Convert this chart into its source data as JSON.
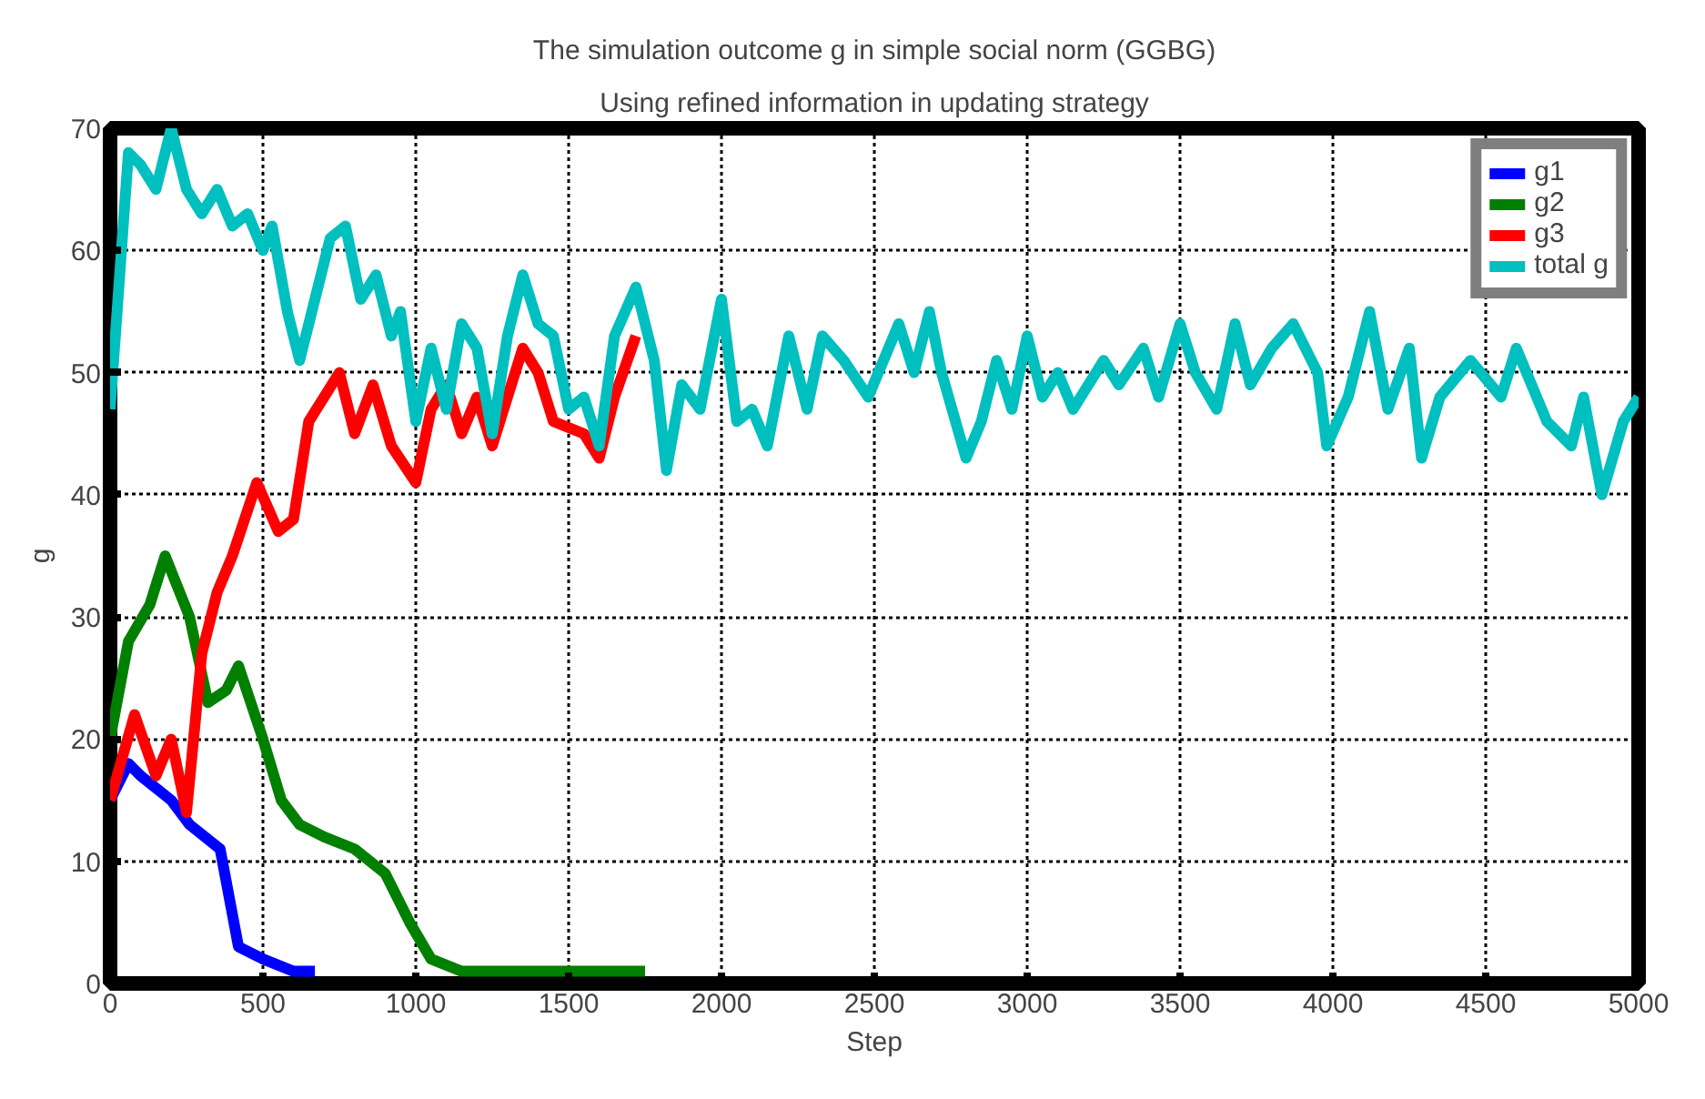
{
  "chart_data": {
    "type": "line",
    "title": "The simulation outcome g in simple social norm (GGBG)",
    "subtitle": "Using refined information in updating strategy",
    "xlabel": "Step",
    "ylabel": "g",
    "xlim": [
      0,
      5000
    ],
    "ylim": [
      0,
      70
    ],
    "xticks": [
      0,
      500,
      1000,
      1500,
      2000,
      2500,
      3000,
      3500,
      4000,
      4500,
      5000
    ],
    "yticks": [
      0,
      10,
      20,
      30,
      40,
      50,
      60,
      70
    ],
    "grid": true,
    "legend": "top right",
    "line_style": "solid",
    "marker": "none",
    "series": [
      {
        "name": "g1",
        "color": "#0000ff",
        "x": [
          0,
          60,
          100,
          200,
          260,
          360,
          420,
          500,
          600,
          670
        ],
        "values": [
          15,
          18,
          17,
          15,
          13,
          11,
          3,
          2,
          1,
          1
        ]
      },
      {
        "name": "g2",
        "color": "#008000",
        "x": [
          0,
          60,
          130,
          180,
          260,
          320,
          380,
          420,
          500,
          560,
          620,
          700,
          800,
          900,
          980,
          1050,
          1150,
          1750
        ],
        "values": [
          20,
          28,
          31,
          35,
          30,
          23,
          24,
          26,
          20,
          15,
          13,
          12,
          11,
          9,
          5,
          2,
          1,
          1
        ]
      },
      {
        "name": "g3",
        "color": "#ff0000",
        "x": [
          0,
          80,
          150,
          200,
          250,
          300,
          350,
          400,
          480,
          550,
          600,
          650,
          750,
          800,
          860,
          920,
          1000,
          1050,
          1100,
          1150,
          1200,
          1250,
          1350,
          1400,
          1450,
          1550,
          1600,
          1650,
          1720
        ],
        "values": [
          15,
          22,
          17,
          20,
          14,
          27,
          32,
          35,
          41,
          37,
          38,
          46,
          50,
          45,
          49,
          44,
          41,
          47,
          49,
          45,
          48,
          44,
          52,
          50,
          46,
          45,
          43,
          48,
          53
        ]
      },
      {
        "name": "total g",
        "color": "#00bfbf",
        "x": [
          0,
          60,
          100,
          150,
          200,
          250,
          300,
          350,
          400,
          450,
          500,
          530,
          580,
          620,
          660,
          720,
          770,
          820,
          870,
          920,
          950,
          1000,
          1050,
          1100,
          1150,
          1200,
          1250,
          1300,
          1350,
          1400,
          1450,
          1500,
          1550,
          1600,
          1650,
          1720,
          1780,
          1820,
          1870,
          1930,
          2000,
          2050,
          2100,
          2150,
          2220,
          2280,
          2330,
          2400,
          2480,
          2580,
          2630,
          2680,
          2720,
          2800,
          2850,
          2900,
          2950,
          3000,
          3050,
          3100,
          3150,
          3250,
          3300,
          3380,
          3430,
          3500,
          3550,
          3620,
          3680,
          3730,
          3800,
          3870,
          3950,
          3980,
          4050,
          4120,
          4180,
          4250,
          4290,
          4350,
          4450,
          4550,
          4600,
          4700,
          4780,
          4820,
          4880,
          4950,
          5000
        ],
        "values": [
          47,
          68,
          67,
          65,
          70,
          65,
          63,
          65,
          62,
          63,
          60,
          62,
          55,
          51,
          55,
          61,
          62,
          56,
          58,
          53,
          55,
          46,
          52,
          47,
          54,
          52,
          45,
          53,
          58,
          54,
          53,
          47,
          48,
          44,
          53,
          57,
          51,
          42,
          49,
          47,
          56,
          46,
          47,
          44,
          53,
          47,
          53,
          51,
          48,
          54,
          50,
          55,
          50,
          43,
          46,
          51,
          47,
          53,
          48,
          50,
          47,
          51,
          49,
          52,
          48,
          54,
          50,
          47,
          54,
          49,
          52,
          54,
          50,
          44,
          48,
          55,
          47,
          52,
          43,
          48,
          51,
          48,
          52,
          46,
          44,
          48,
          40,
          46,
          48
        ]
      }
    ]
  }
}
